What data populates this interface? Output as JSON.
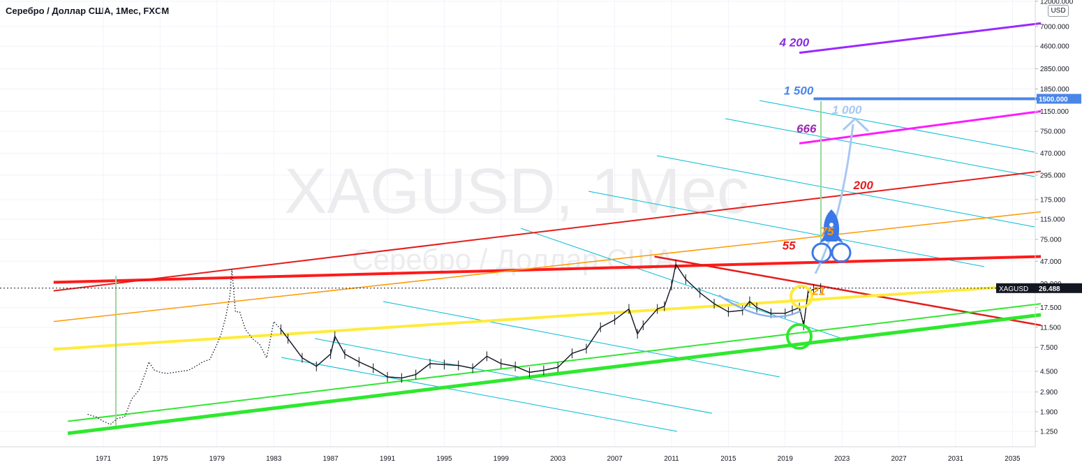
{
  "header": {
    "title": "Серебро / Доллар США, 1Мес, FXCM"
  },
  "price_scale": {
    "unit": "USD"
  },
  "watermark": {
    "symbol_line": "XAGUSD, 1Мес",
    "name_line": "Серебро / Доллар США"
  },
  "colors": {
    "background": "#ffffff",
    "grid": "#f0f3fa",
    "candles": "#131722",
    "cyan_channel": "#00bcd4",
    "yellow_support": "#ffeb3b",
    "green_support": "#33e633",
    "red_resistance": "#ff1a1a",
    "orange_line": "#ff9800",
    "magenta_line": "#ff1aff",
    "purple_line": "#9c27ff",
    "blue_level": "#4a86e8",
    "arrow": "#a8c8f0",
    "green_vertical": "#9ad89a"
  },
  "chart_data": {
    "type": "line",
    "symbol": "XAGUSD",
    "timeframe": "1Мес",
    "scale": "log",
    "grid": true,
    "legend": "none",
    "xlim": [
      1968.5,
      2037
    ],
    "ylim": [
      1.0,
      12000
    ],
    "x_tick_labels": [
      "1971",
      "1975",
      "1979",
      "1983",
      "1987",
      "1991",
      "1995",
      "1999",
      "2003",
      "2007",
      "2011",
      "2015",
      "2019",
      "2023",
      "2027",
      "2031",
      "2035"
    ],
    "y_tick_labels": [
      "12000.000",
      "7000.000",
      "4600.000",
      "2850.000",
      "1850.000",
      "1150.000",
      "750.000",
      "470.000",
      "295.000",
      "175.000",
      "115.000",
      "75.000",
      "47.000",
      "29.000",
      "17.500",
      "11.500",
      "7.500",
      "4.500",
      "2.900",
      "1.900",
      "1.250"
    ],
    "current_price": {
      "symbol": "XAGUSD",
      "value": 26.488,
      "label": "26.488"
    },
    "target_level": {
      "value": 1500,
      "label": "1500.000"
    },
    "series": [
      {
        "kind": "price",
        "x": [
          1969.9,
          1970.5,
          1971.0,
          1971.5,
          1972.0,
          1972.5,
          1973.0,
          1973.5,
          1974.0,
          1974.2,
          1974.6,
          1975.0,
          1975.5,
          1976.0,
          1976.5,
          1977.0,
          1977.5,
          1978.0,
          1978.5,
          1979.0,
          1979.3,
          1979.6,
          1979.9,
          1980.05,
          1980.3,
          1980.6,
          1981.0,
          1981.5,
          1982.0,
          1982.5,
          1983.0,
          1983.5,
          1984.0,
          1985.0,
          1986.0,
          1987.0,
          1987.3,
          1988.0,
          1989.0,
          1990.0,
          1991.0,
          1992.0,
          1993.0,
          1994.0,
          1995.0,
          1996.0,
          1997.0,
          1998.0,
          1999.0,
          2000.0,
          2001.0,
          2002.0,
          2003.0,
          2004.0,
          2005.0,
          2006.0,
          2007.0,
          2008.0,
          2008.6,
          2009.0,
          2010.0,
          2010.5,
          2011.0,
          2011.3,
          2012.0,
          2013.0,
          2014.0,
          2015.0,
          2016.0,
          2016.5,
          2017.0,
          2018.0,
          2019.0,
          2019.5,
          2020.0,
          2020.3,
          2020.6,
          2021.0,
          2021.5
        ],
        "y": [
          1.8,
          1.7,
          1.55,
          1.45,
          1.65,
          1.7,
          2.5,
          3.0,
          4.5,
          5.5,
          4.6,
          4.4,
          4.3,
          4.4,
          4.5,
          4.6,
          5.0,
          5.5,
          5.8,
          8.0,
          10,
          14,
          22,
          40,
          16,
          16,
          11,
          9,
          8,
          6,
          13,
          11,
          9,
          6,
          5,
          6.5,
          9.5,
          6.5,
          5.5,
          4.8,
          4.0,
          3.9,
          4.2,
          5.3,
          5.2,
          5.1,
          4.8,
          6.2,
          5.3,
          5.0,
          4.4,
          4.6,
          4.9,
          6.6,
          7.3,
          11.5,
          13.5,
          17,
          10,
          12,
          17,
          18,
          28,
          44,
          32,
          24,
          19,
          16,
          16.5,
          20,
          17.5,
          15.5,
          15.5,
          16.5,
          17.5,
          12,
          24,
          26,
          26.5
        ]
      },
      {
        "kind": "red-long",
        "x": [
          1967.5,
          2037
        ],
        "y": [
          30,
          52
        ]
      },
      {
        "kind": "red-steep",
        "x": [
          1967.5,
          2037
        ],
        "y": [
          25,
          320
        ]
      },
      {
        "kind": "red-down",
        "x": [
          2009.8,
          2037
        ],
        "y": [
          52,
          12
        ]
      },
      {
        "kind": "orange",
        "x": [
          1967.5,
          2037
        ],
        "y": [
          13,
          135
        ]
      },
      {
        "kind": "yellow",
        "x": [
          1967.5,
          2037
        ],
        "y": [
          7.2,
          28.5
        ]
      },
      {
        "kind": "green-thin",
        "x": [
          1968.5,
          2037
        ],
        "y": [
          1.55,
          19
        ]
      },
      {
        "kind": "green-thick",
        "x": [
          1968.5,
          2037
        ],
        "y": [
          1.2,
          15
        ]
      },
      {
        "kind": "magenta",
        "x": [
          2020,
          2037
        ],
        "y": [
          580,
          1150
        ]
      },
      {
        "kind": "purple",
        "x": [
          2020,
          2037
        ],
        "y": [
          4000,
          7500
        ]
      },
      {
        "kind": "blue-1500",
        "x": [
          2021,
          2037
        ],
        "y": [
          1500,
          1500
        ]
      }
    ],
    "annotations": [
      {
        "text": "4 200",
        "x": 2018.6,
        "y": 4200,
        "color": "#8a2be2"
      },
      {
        "text": "1 500",
        "x": 2018.9,
        "y": 1500,
        "color": "#4a86e8"
      },
      {
        "text": "1 000",
        "x": 2022.3,
        "y": 1000,
        "color": "#a8c8f0"
      },
      {
        "text": "666",
        "x": 2019.8,
        "y": 666,
        "color": "#9c27b0"
      },
      {
        "text": "200",
        "x": 2023.8,
        "y": 200,
        "color": "#e51c1c"
      },
      {
        "text": "75",
        "x": 2021.5,
        "y": 75,
        "color": "#ff9800"
      },
      {
        "text": "55",
        "x": 2018.8,
        "y": 55,
        "color": "#e51c1c"
      },
      {
        "text": "21",
        "x": 2020.9,
        "y": 21,
        "color": "#ff9800"
      }
    ]
  }
}
